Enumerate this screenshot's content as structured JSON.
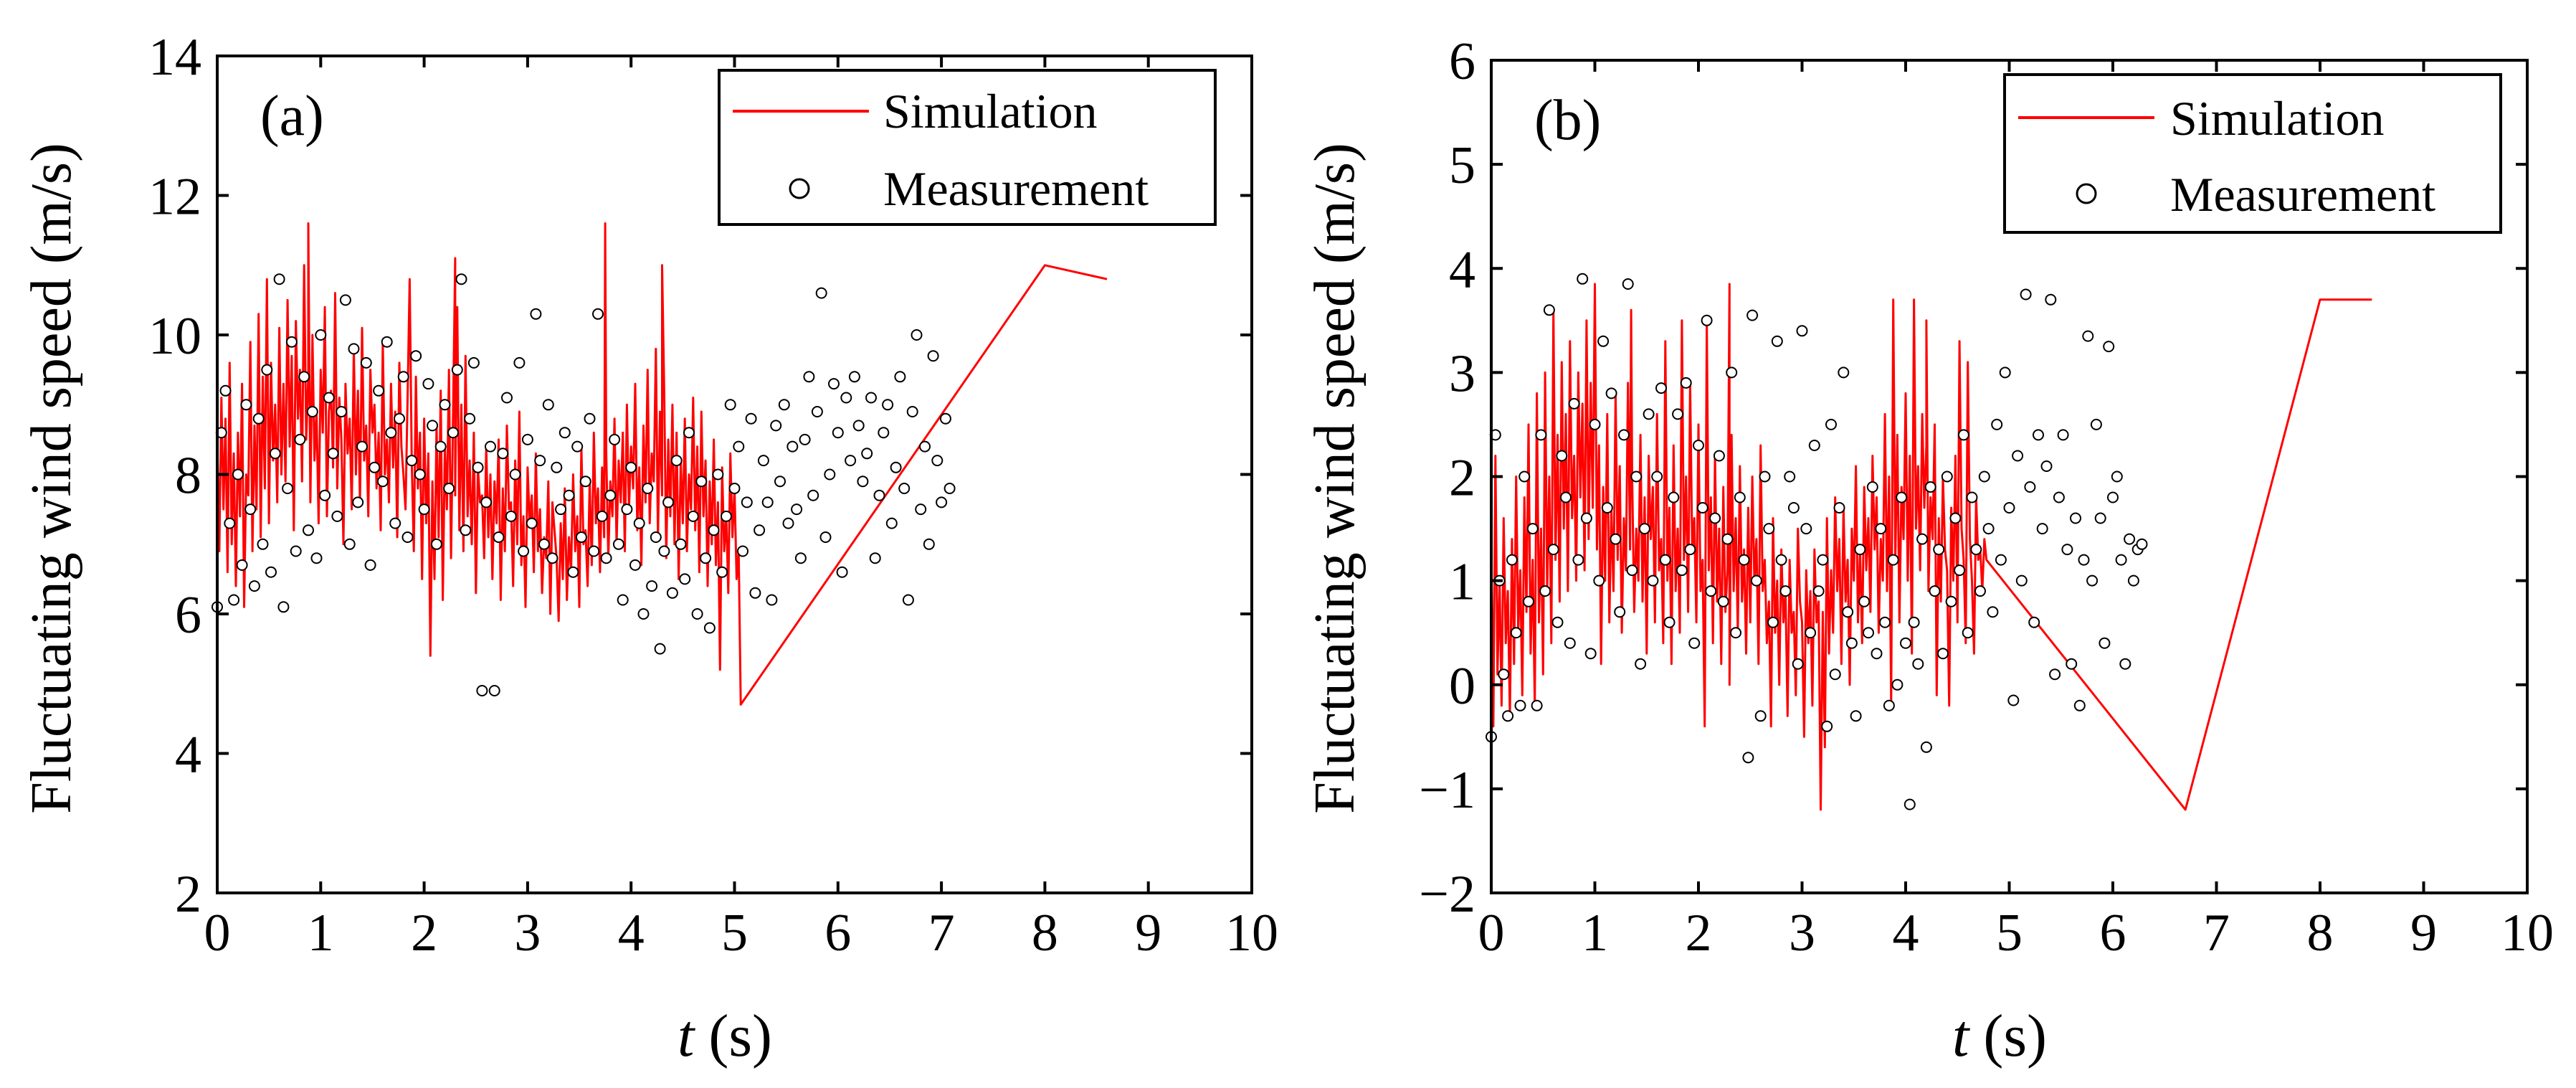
{
  "chart_data": [
    {
      "panel_label": "(a)",
      "type": "line",
      "xlabel_italic": "t",
      "xlabel_unit": "(s)",
      "ylabel": "Fluctuating wind speed (m/s)",
      "xlim": [
        0,
        10
      ],
      "ylim": [
        2,
        14
      ],
      "xticks": [
        0,
        1,
        2,
        3,
        4,
        5,
        6,
        7,
        8,
        9,
        10
      ],
      "yticks": [
        2,
        4,
        6,
        8,
        10,
        12,
        14
      ],
      "grid": false,
      "legend_position": "top-right",
      "series": [
        {
          "name": "Simulation",
          "style": "line",
          "color": "#ff0000",
          "dt": 0.02,
          "values": [
            8.5,
            6.9,
            9.1,
            7.5,
            8.8,
            6.6,
            9.6,
            7.0,
            8.3,
            6.4,
            8.6,
            7.4,
            9.3,
            6.1,
            8.0,
            7.7,
            9.9,
            6.9,
            8.7,
            7.5,
            10.3,
            7.1,
            9.4,
            7.8,
            10.8,
            7.3,
            9.6,
            8.2,
            9.0,
            7.6,
            10.1,
            8.0,
            9.3,
            7.9,
            10.5,
            8.4,
            9.7,
            7.2,
            10.2,
            8.8,
            9.5,
            7.9,
            11.0,
            8.5,
            9.4,
            7.6,
            10.0,
            8.2,
            8.9,
            7.3,
            9.5,
            8.6,
            10.4,
            7.4,
            8.9,
            9.2,
            8.1,
            10.6,
            7.8,
            9.1,
            8.5,
            7.0,
            9.3,
            8.3,
            8.8,
            7.5,
            9.8,
            8.0,
            9.2,
            7.6,
            10.1,
            8.2,
            8.7,
            7.4,
            9.5,
            8.6,
            9.0,
            7.8,
            8.6,
            7.2,
            9.9,
            8.0,
            8.5,
            7.6,
            9.3,
            8.1,
            8.9,
            7.1,
            9.6,
            8.4,
            8.0,
            7.5,
            9.1,
            10.8,
            8.2,
            6.9,
            9.4,
            7.8,
            8.6,
            6.5,
            8.8,
            7.3,
            8.3,
            5.4,
            7.9,
            6.5,
            8.7,
            7.1,
            9.2,
            6.2,
            8.4,
            7.5,
            9.5,
            6.8,
            8.9,
            7.7,
            10.4,
            7.2,
            9.0,
            6.9,
            9.7,
            7.4,
            8.2,
            7.0,
            8.6,
            6.3,
            8.1,
            7.6,
            7.7,
            6.8,
            8.4,
            7.1,
            8.0,
            6.5,
            7.9,
            7.3,
            8.5,
            6.2,
            7.8,
            6.9,
            8.7,
            7.5,
            7.6,
            6.4,
            8.2,
            7.0,
            8.9,
            6.7,
            7.4,
            6.1,
            8.1,
            7.3,
            7.7,
            6.6,
            8.3,
            6.9,
            7.5,
            6.3,
            7.1,
            6.8,
            7.9,
            6.0,
            7.6,
            7.2,
            6.8,
            5.9,
            7.3,
            6.5,
            7.8,
            6.2,
            7.1,
            6.6,
            8.0,
            6.9,
            7.4,
            6.1,
            8.4,
            7.0,
            7.2,
            6.4,
            7.9,
            6.7,
            8.6,
            7.3,
            7.8,
            6.6,
            8.1,
            7.1,
            8.3,
            6.8,
            7.9,
            7.4,
            8.8,
            7.0,
            8.2,
            7.6,
            8.6,
            6.9,
            9.0,
            7.5,
            8.4,
            7.8,
            9.3,
            7.2,
            8.1,
            6.7,
            8.7,
            7.6,
            9.5,
            7.3,
            8.3,
            7.9,
            9.8,
            7.1,
            8.9,
            7.7,
            9.2,
            6.8,
            8.5,
            7.4,
            9.0,
            7.0,
            8.6,
            6.5,
            8.2,
            7.3,
            8.8,
            6.9,
            8.0,
            7.5,
            9.1,
            7.2,
            8.4,
            6.6,
            8.9,
            7.4,
            8.2,
            6.4,
            7.9,
            7.0,
            8.5,
            6.7,
            7.6,
            5.2,
            8.1,
            6.9,
            7.4,
            6.3,
            8.3,
            7.1,
            7.8,
            6.5,
            6.9,
            4.7
          ],
          "spikes": [
            [
              0.88,
              11.6
            ],
            [
              2.3,
              11.1
            ],
            [
              3.75,
              11.6
            ],
            [
              4.3,
              11.0
            ],
            [
              8.0,
              11.0
            ],
            [
              8.6,
              10.8
            ]
          ]
        },
        {
          "name": "Measurement",
          "style": "markers",
          "marker": "open-circle",
          "dt": 0.04,
          "values": [
            6.1,
            8.6,
            9.2,
            7.3,
            6.2,
            8.0,
            6.7,
            9.0,
            7.5,
            6.4,
            8.8,
            7.0,
            9.5,
            6.6,
            8.3,
            10.8,
            6.1,
            7.8,
            9.9,
            6.9,
            8.5,
            9.4,
            7.2,
            8.9,
            6.8,
            10.0,
            7.7,
            9.1,
            8.3,
            7.4,
            8.9,
            10.5,
            7.0,
            9.8,
            7.6,
            8.4,
            9.6,
            6.7,
            8.1,
            9.2,
            7.9,
            9.9,
            8.6,
            7.3,
            8.8,
            9.4,
            7.1,
            8.2,
            9.7,
            8.0,
            7.5,
            9.3,
            8.7,
            7.0,
            8.4,
            9.0,
            7.8,
            8.6,
            9.5,
            10.8,
            7.2,
            8.8,
            9.6,
            8.1,
            4.9,
            7.6,
            8.4,
            4.9,
            7.1,
            8.3,
            9.1,
            7.4,
            8.0,
            9.6,
            6.9,
            8.5,
            7.3,
            10.3,
            8.2,
            7.0,
            9.0,
            6.8,
            8.1,
            7.5,
            8.6,
            7.7,
            6.6,
            8.4,
            7.1,
            7.9,
            8.8,
            6.9,
            10.3,
            7.4,
            6.8,
            7.7,
            8.5,
            7.0,
            6.2,
            7.5,
            8.1,
            6.7,
            7.3,
            6.0,
            7.8,
            6.4,
            7.1,
            5.5,
            6.9,
            7.6,
            6.3,
            8.2,
            7.0,
            6.5,
            8.6,
            7.4,
            6.0,
            7.9,
            6.8,
            5.8,
            7.2,
            8.0,
            6.6,
            7.4,
            9.0,
            7.8,
            8.4,
            6.9,
            7.6,
            8.8,
            6.3,
            7.2,
            8.2,
            7.6,
            6.2,
            8.7,
            7.9,
            9.0,
            7.3,
            8.4,
            7.5,
            6.8,
            8.5,
            9.4,
            7.7,
            8.9,
            10.6,
            7.1,
            8.0,
            9.3,
            8.6,
            6.6,
            9.1,
            8.2,
            9.4,
            8.7,
            7.9,
            8.3,
            9.1,
            6.8,
            7.7,
            8.6,
            9.0,
            7.3,
            8.1,
            9.4,
            7.8,
            6.2,
            8.9,
            10.0,
            7.5,
            8.4,
            7.0,
            9.7,
            8.2,
            7.6,
            8.8,
            7.8
          ]
        }
      ]
    },
    {
      "panel_label": "(b)",
      "type": "line",
      "xlabel_italic": "t",
      "xlabel_unit": "(s)",
      "ylabel": "Fluctuating wind speed (m/s)",
      "xlim": [
        0,
        10
      ],
      "ylim": [
        -2,
        6
      ],
      "xticks": [
        0,
        1,
        2,
        3,
        4,
        5,
        6,
        7,
        8,
        9,
        10
      ],
      "yticks": [
        -2,
        -1,
        0,
        1,
        2,
        3,
        4,
        5,
        6
      ],
      "grid": false,
      "legend_position": "top-right",
      "series": [
        {
          "name": "Simulation",
          "style": "line",
          "color": "#ff0000",
          "dt": 0.02,
          "values": [
            1.3,
            -0.4,
            2.2,
            0.1,
            1.0,
            -0.2,
            1.6,
            0.4,
            0.9,
            -0.3,
            1.4,
            0.2,
            2.0,
            0.5,
            1.1,
            -0.1,
            1.8,
            0.7,
            2.5,
            0.3,
            1.2,
            -0.2,
            2.8,
            0.6,
            1.5,
            0.1,
            3.0,
            0.9,
            2.0,
            0.4,
            3.6,
            1.2,
            2.4,
            0.8,
            3.1,
            1.5,
            2.6,
            0.9,
            3.3,
            1.6,
            2.2,
            1.0,
            3.0,
            1.8,
            2.7,
            1.1,
            3.5,
            1.4,
            2.9,
            1.7,
            3.85,
            1.3,
            2.3,
            0.2,
            1.9,
            1.0,
            2.6,
            0.6,
            1.7,
            0.9,
            2.8,
            1.2,
            2.1,
            0.5,
            1.6,
            1.1,
            2.9,
            1.3,
            2.0,
            0.7,
            1.5,
            1.0,
            2.4,
            0.8,
            1.8,
            0.3,
            2.2,
            1.4,
            1.9,
            0.6,
            2.6,
            1.1,
            1.4,
            0.4,
            3.3,
            1.0,
            1.7,
            0.2,
            2.3,
            0.9,
            1.5,
            0.5,
            3.5,
            1.2,
            2.0,
            0.7,
            2.9,
            1.3,
            1.6,
            0.6,
            2.5,
            0.9,
            1.2,
            -0.4,
            3.5,
            1.1,
            1.8,
            0.4,
            2.2,
            0.8,
            1.5,
            0.2,
            1.9,
            0.7,
            1.1,
            0.0,
            2.4,
            0.9,
            1.6,
            0.5,
            2.1,
            0.8,
            1.3,
            0.3,
            1.7,
            0.6,
            2.0,
            1.0,
            1.4,
            0.2,
            2.3,
            0.9,
            1.2,
            0.4,
            0.8,
            -0.4,
            1.6,
            0.5,
            1.0,
            0.0,
            1.3,
            0.6,
            0.9,
            -0.3,
            1.2,
            0.5,
            0.7,
            -0.1,
            1.5,
            0.8,
            0.6,
            -0.5,
            1.1,
            0.4,
            0.9,
            -0.2,
            1.3,
            0.6,
            0.8,
            -1.2,
            0.7,
            -0.6,
            1.6,
            0.3,
            1.1,
            0.5,
            1.8,
            0.9,
            1.4,
            0.2,
            1.7,
            0.8,
            1.2,
            0.0,
            1.5,
            1.0,
            2.1,
            0.6,
            1.3,
            0.4,
            1.9,
            1.1,
            1.6,
            0.7,
            2.2,
            1.3,
            1.8,
            0.5,
            1.4,
            1.0,
            2.6,
            0.9,
            2.0,
            -0.2,
            3.7,
            1.2,
            2.4,
            0.6,
            1.9,
            1.4,
            2.8,
            1.0,
            2.2,
            0.3,
            3.7,
            1.5,
            2.1,
            1.1,
            2.6,
            1.7,
            2.3,
            0.9,
            1.8,
            1.4,
            2.5,
            -0.1,
            1.6,
            0.8,
            2.0,
            1.3,
            1.1,
            -0.2,
            1.7,
            1.0,
            2.2,
            0.6,
            3.3,
            1.5,
            1.2,
            0.4,
            3.1,
            1.4,
            1.0,
            0.3,
            1.8,
            1.2,
            1.3,
            0.9,
            1.4,
            1.2
          ],
          "spikes": [
            [
              1.35,
              3.6
            ],
            [
              2.3,
              3.85
            ],
            [
              4.2,
              3.5
            ],
            [
              6.7,
              -1.2
            ],
            [
              8.0,
              3.7
            ],
            [
              8.5,
              3.7
            ]
          ]
        },
        {
          "name": "Measurement",
          "style": "markers",
          "marker": "open-circle",
          "dt": 0.04,
          "values": [
            -0.5,
            2.4,
            1.0,
            0.1,
            -0.3,
            1.2,
            0.5,
            -0.2,
            2.0,
            0.8,
            1.5,
            -0.2,
            2.4,
            0.9,
            3.6,
            1.3,
            0.6,
            2.2,
            1.8,
            0.4,
            2.7,
            1.2,
            3.9,
            1.6,
            0.3,
            2.5,
            1.0,
            3.3,
            1.7,
            2.8,
            1.4,
            0.7,
            2.4,
            3.85,
            1.1,
            2.0,
            0.2,
            1.5,
            2.6,
            1.0,
            2.0,
            2.85,
            1.2,
            0.6,
            1.8,
            2.6,
            1.1,
            2.9,
            1.3,
            0.4,
            2.3,
            1.7,
            3.5,
            0.9,
            1.6,
            2.2,
            0.8,
            1.4,
            3.0,
            0.5,
            1.8,
            1.2,
            -0.7,
            3.55,
            1.0,
            -0.3,
            2.0,
            1.5,
            0.6,
            3.3,
            1.2,
            0.9,
            2.0,
            1.7,
            0.2,
            3.4,
            1.5,
            0.5,
            2.3,
            0.9,
            1.2,
            -0.4,
            2.5,
            0.1,
            1.7,
            3.0,
            0.7,
            0.4,
            -0.3,
            1.3,
            0.8,
            0.5,
            1.9,
            0.3,
            1.5,
            0.6,
            -0.2,
            1.2,
            0.0,
            1.8,
            0.4,
            -1.15,
            0.6,
            0.2,
            1.4,
            -0.6,
            1.9,
            0.9,
            1.3,
            0.3,
            2.0,
            0.8,
            1.6,
            1.1,
            2.4,
            0.5,
            1.8,
            1.3,
            0.9,
            2.0,
            1.5,
            0.7,
            2.5,
            1.2,
            3.0,
            1.7,
            -0.15,
            2.2,
            1.0,
            3.75,
            1.9,
            0.6,
            2.4,
            1.5,
            2.1,
            3.7,
            0.1,
            1.8,
            2.4,
            1.3,
            0.2,
            1.6,
            -0.2,
            1.2,
            3.35,
            1.0,
            2.5,
            1.6,
            0.4,
            3.25,
            1.8,
            2.0,
            1.2,
            0.2,
            1.4,
            1.0,
            1.3,
            1.35
          ]
        }
      ]
    }
  ],
  "colors": {
    "simulation_line": "#ff0000",
    "marker_fill": "#ffffff",
    "marker_stroke": "#000000",
    "axis": "#000000"
  }
}
